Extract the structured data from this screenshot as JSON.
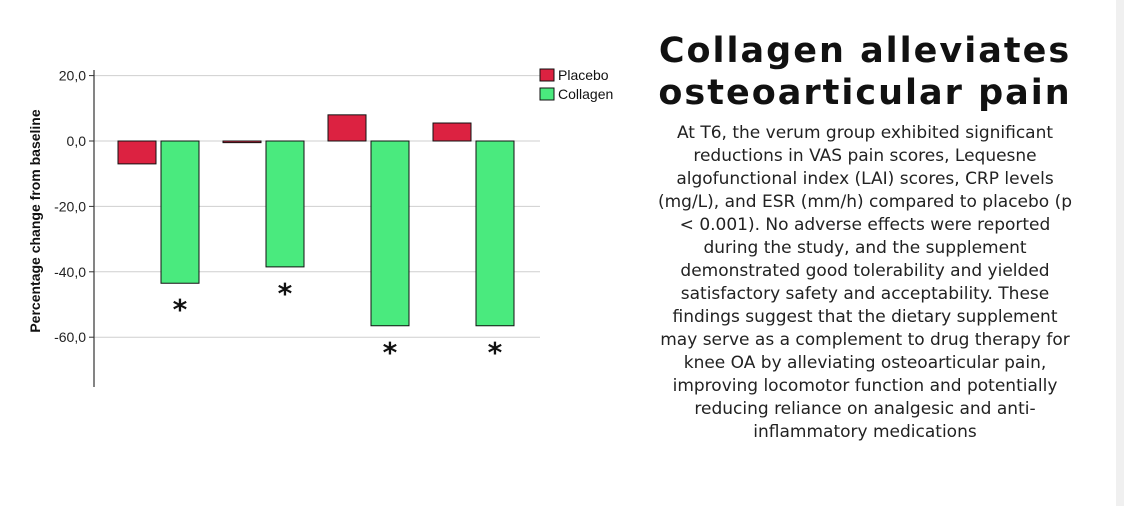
{
  "chart_data": {
    "type": "bar",
    "title": "",
    "xlabel": "",
    "ylabel": "Percentage change from baseline",
    "ylim": [
      -75,
      22
    ],
    "yticks": [
      20,
      0,
      -20,
      -40,
      -60
    ],
    "ytick_labels": [
      "20,0",
      "0,0",
      "-20,0",
      "-40,0",
      "-60,0"
    ],
    "categories": [
      "",
      "",
      "",
      ""
    ],
    "series": [
      {
        "name": "Placebo",
        "color": "#dc2241",
        "values": [
          -7,
          -0.5,
          8,
          5.5
        ]
      },
      {
        "name": "Collagen",
        "color": "#4aea7e",
        "values": [
          -43.5,
          -38.5,
          -56.5,
          -56.5
        ]
      }
    ],
    "annotations": [
      "*",
      "*",
      "*",
      "*"
    ],
    "grid": true,
    "legend_position": "top-right"
  },
  "panel": {
    "title": "Collagen alleviates osteoarticular pain",
    "body": "At T6, the verum group exhibited significant reductions in VAS pain scores, Lequesne algofunctional index (LAI) scores, CRP levels (mg/L), and ESR (mm/h) compared to placebo (p < 0.001). No adverse effects were reported during the study, and the supplement demonstrated good tolerability and yielded satisfactory safety and acceptability. These findings suggest that the dietary supplement may serve as a complement to drug therapy for knee OA by alleviating osteoarticular pain, improving locomotor function and potentially reducing reliance on analgesic and anti-inflammatory medications"
  }
}
